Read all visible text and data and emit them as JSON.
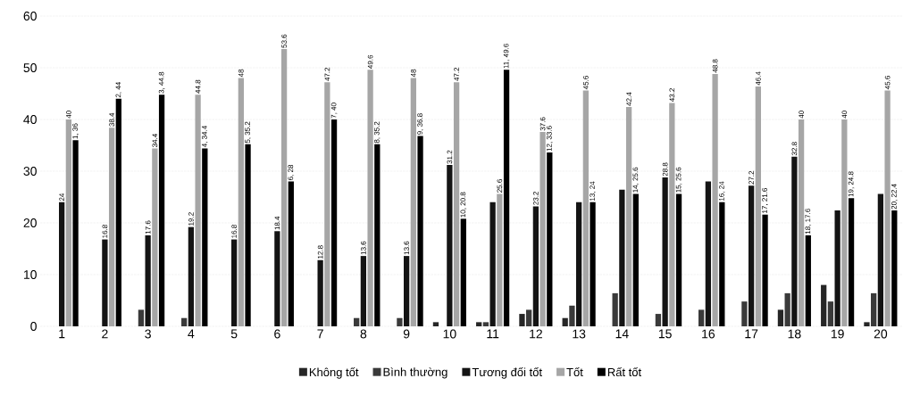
{
  "chart_data": {
    "type": "bar",
    "categories": [
      "1",
      "2",
      "3",
      "4",
      "5",
      "6",
      "7",
      "8",
      "9",
      "10",
      "11",
      "12",
      "13",
      "14",
      "15",
      "16",
      "17",
      "18",
      "19",
      "20"
    ],
    "series": [
      {
        "name": "Không tốt",
        "color": "#262626",
        "values": [
          0,
          0,
          0,
          0,
          0,
          0,
          0,
          0,
          0,
          0.8,
          0.8,
          2.4,
          1.6,
          0,
          0,
          0,
          0,
          3.2,
          8,
          0.8
        ]
      },
      {
        "name": "Bình thường",
        "color": "#3a3a3a",
        "values": [
          0,
          0,
          3.2,
          1.6,
          0,
          0,
          0,
          1.6,
          1.6,
          0,
          0.8,
          3.2,
          4,
          6.4,
          2.4,
          3.2,
          4.8,
          6.4,
          4.8,
          6.4
        ]
      },
      {
        "name": "Tương đối tốt",
        "color": "#141414",
        "values": [
          24,
          16.8,
          17.6,
          19.2,
          16.8,
          18.4,
          12.8,
          13.6,
          13.6,
          31.2,
          24,
          23.2,
          24,
          26.4,
          28.8,
          28,
          27.2,
          32.8,
          22.4,
          25.6
        ],
        "value_labels": [
          "24",
          "16.8",
          "17.6",
          "19.2",
          "16.8",
          "18.4",
          "12.8",
          "13.6",
          "13.6",
          "31.2",
          null,
          "23.2",
          null,
          null,
          "28.8",
          null,
          "27.2",
          "32.8",
          null,
          null
        ]
      },
      {
        "name": "Tốt",
        "color": "#a6a6a6",
        "values": [
          40,
          38.4,
          34.4,
          44.8,
          48,
          53.6,
          47.2,
          49.6,
          48,
          47.2,
          25.6,
          37.6,
          45.6,
          42.4,
          43.2,
          48.8,
          46.4,
          40,
          40,
          45.6
        ],
        "value_labels": [
          "40",
          "38.4",
          "34.4",
          "44.8",
          "48",
          "53.6",
          "47.2",
          "49.6",
          "48",
          "47.2",
          "25.6",
          "37.6",
          "45.6",
          "42.4",
          "43.2",
          "48.8",
          "46.4",
          "40",
          "40",
          "45.6"
        ]
      },
      {
        "name": "Rất tốt",
        "color": "#000000",
        "values": [
          36,
          44,
          44.8,
          34.4,
          35.2,
          28,
          40,
          35.2,
          36.8,
          20.8,
          49.6,
          33.6,
          24,
          25.6,
          25.6,
          24,
          21.6,
          17.6,
          24.8,
          22.4
        ],
        "value_labels": [
          "1, 36",
          "2, 44",
          "3, 44.8",
          "4, 34.4",
          "5, 35.2",
          "6, 28",
          "7, 40",
          "8, 35.2",
          "9, 36.8",
          "10, 20.8",
          "11, 49.6",
          "12, 33.6",
          "13, 24",
          "14, 25.6",
          "15, 25.6",
          "16, 24",
          "17, 21.6",
          "18, 17.6",
          "19, 24.8",
          "20, 22.4"
        ]
      }
    ],
    "ylim": [
      0,
      60
    ],
    "yticks": [
      0,
      10,
      20,
      30,
      40,
      50,
      60
    ],
    "grid": "y",
    "legend": "bottom"
  }
}
